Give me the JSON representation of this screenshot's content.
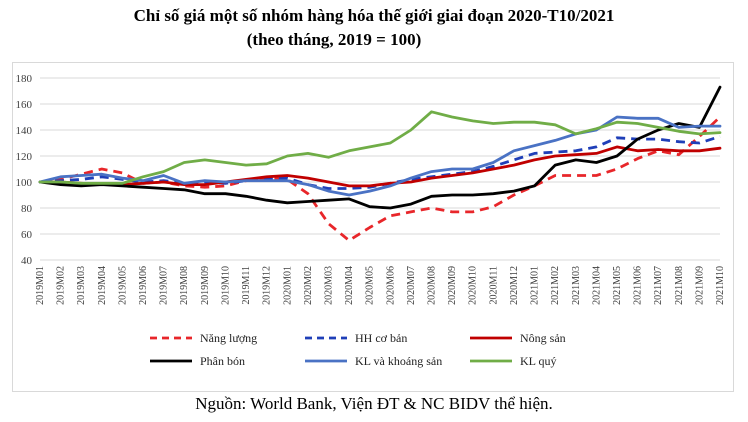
{
  "header": {
    "title": "Chỉ số giá một số nhóm hàng hóa thế giới giai đoạn 2020-T10/2021",
    "subtitle": "(theo tháng, 2019 = 100)"
  },
  "footer": {
    "source": "Nguồn: World Bank, Viện ĐT & NC BIDV thể hiện."
  },
  "chart_data": {
    "type": "line",
    "title": "Chỉ số giá một số nhóm hàng hóa thế giới giai đoạn 2020-T10/2021",
    "subtitle": "(theo tháng, 2019 = 100)",
    "ylim": [
      40,
      180
    ],
    "yticks": [
      40,
      60,
      80,
      100,
      120,
      140,
      160,
      180
    ],
    "grid": true,
    "legend_position": "bottom",
    "categories": [
      "2019M01",
      "2019M02",
      "2019M03",
      "2019M04",
      "2019M05",
      "2019M06",
      "2019M07",
      "2019M08",
      "2019M09",
      "2019M10",
      "2019M11",
      "2019M12",
      "2020M01",
      "2020M02",
      "2020M03",
      "2020M04",
      "2020M05",
      "2020M06",
      "2020M07",
      "2020M08",
      "2020M09",
      "2020M10",
      "2020M11",
      "2020M12",
      "2021M01",
      "2021M02",
      "2021M03",
      "2021M04",
      "2021M05",
      "2021M06",
      "2021M07",
      "2021M08",
      "2021M09",
      "2021M10"
    ],
    "series": [
      {
        "name": "Năng lượng",
        "color": "#e8262a",
        "dash": "dashed",
        "values": [
          100,
          102,
          106,
          110,
          107,
          99,
          100,
          97,
          96,
          97,
          101,
          103,
          102,
          91,
          68,
          55,
          65,
          74,
          77,
          80,
          77,
          77,
          81,
          90,
          97,
          105,
          105,
          105,
          110,
          118,
          124,
          121,
          135,
          150
        ]
      },
      {
        "name": "HH cơ bản",
        "color": "#1f3fb8",
        "dash": "dashed",
        "values": [
          100,
          101,
          102,
          104,
          102,
          100,
          101,
          99,
          100,
          99,
          101,
          103,
          103,
          98,
          95,
          95,
          96,
          99,
          102,
          104,
          106,
          108,
          112,
          117,
          122,
          123,
          124,
          127,
          134,
          133,
          133,
          131,
          130,
          135
        ]
      },
      {
        "name": "Nông sản",
        "color": "#c00000",
        "dash": "solid",
        "values": [
          100,
          100,
          99,
          98,
          98,
          99,
          100,
          98,
          98,
          100,
          102,
          104,
          105,
          103,
          100,
          97,
          97,
          99,
          100,
          103,
          105,
          107,
          110,
          113,
          117,
          120,
          121,
          122,
          127,
          124,
          125,
          124,
          124,
          126
        ]
      },
      {
        "name": "Phân bón",
        "color": "#000000",
        "dash": "solid",
        "values": [
          100,
          98,
          97,
          98,
          97,
          96,
          95,
          94,
          91,
          91,
          89,
          86,
          84,
          85,
          86,
          87,
          81,
          80,
          83,
          89,
          90,
          90,
          91,
          93,
          97,
          113,
          117,
          115,
          120,
          133,
          140,
          145,
          142,
          173
        ]
      },
      {
        "name": "KL và khoáng sản",
        "color": "#4a72c4",
        "dash": "solid",
        "values": [
          100,
          104,
          105,
          106,
          103,
          101,
          105,
          99,
          101,
          100,
          101,
          101,
          101,
          98,
          93,
          90,
          93,
          97,
          103,
          108,
          110,
          110,
          115,
          124,
          128,
          132,
          137,
          140,
          150,
          149,
          149,
          142,
          143,
          143
        ]
      },
      {
        "name": "KL quý",
        "color": "#70ad47",
        "dash": "solid",
        "values": [
          100,
          100,
          99,
          99,
          99,
          104,
          108,
          115,
          117,
          115,
          113,
          114,
          120,
          122,
          119,
          124,
          127,
          130,
          140,
          154,
          150,
          147,
          145,
          146,
          146,
          144,
          137,
          141,
          146,
          145,
          142,
          139,
          137,
          138
        ]
      }
    ]
  }
}
